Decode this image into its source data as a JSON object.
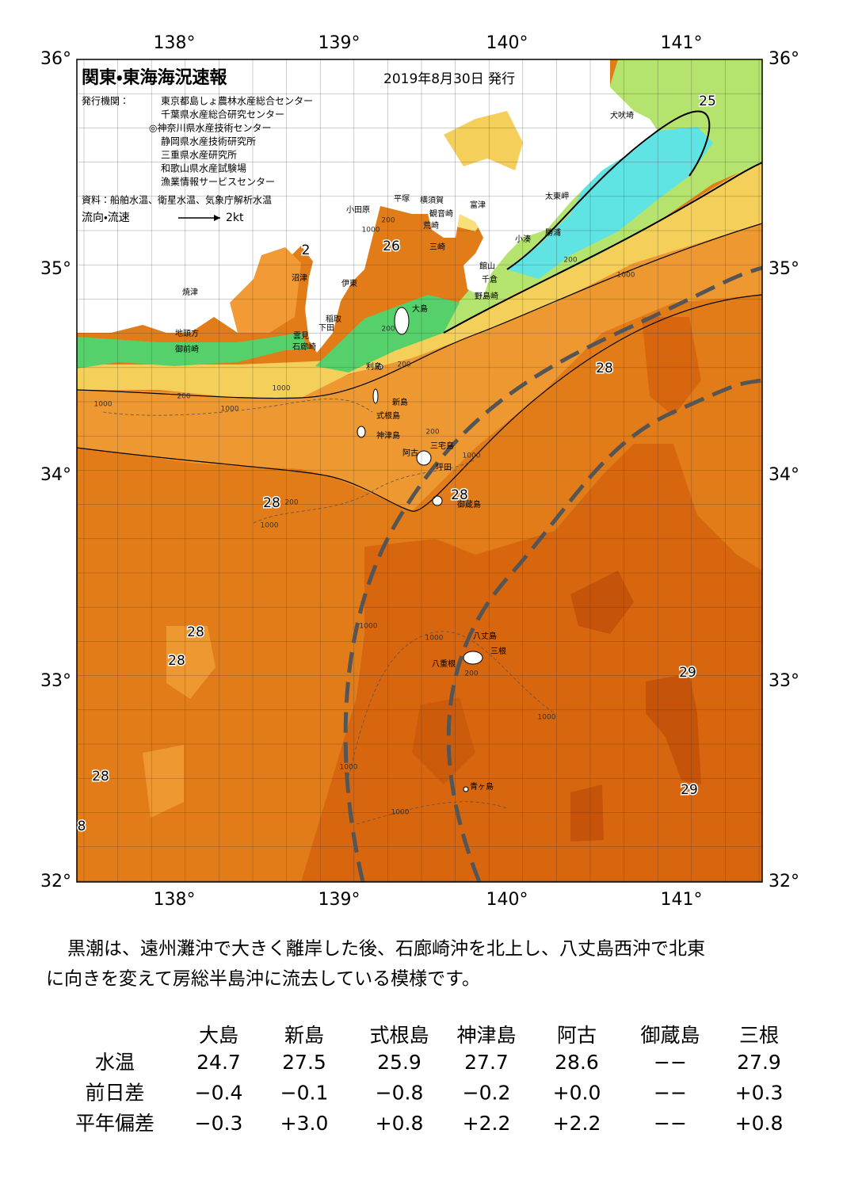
{
  "map": {
    "title": "関東・東海海況速報",
    "issued": "2019年8月30日 発行",
    "issuer_label": "発行機関：",
    "issuers": [
      "東京都島しょ農林水産総合センター",
      "千葉県水産総合研究センター",
      "◎神奈川県水産技術センター",
      "静岡県水産技術研究所",
      "三重県水産研究所",
      "和歌山県水産試験場",
      "漁業情報サービスセンター"
    ],
    "source": "資料：船舶水温、衛星水温、気象庁解析水温",
    "current_legend": {
      "label": "流向・流速",
      "speed": "2kt"
    },
    "lon_labels": [
      "138°",
      "139°",
      "140°",
      "141°"
    ],
    "lat_labels": [
      "36°",
      "35°",
      "34°",
      "33°",
      "32°"
    ],
    "place_names": [
      "犬吠埼",
      "太東岬",
      "勝浦",
      "小湊",
      "富津",
      "横須賀",
      "観音崎",
      "平塚",
      "小田原",
      "荒崎",
      "三崎",
      "館山",
      "千倉",
      "野島崎",
      "沼津",
      "伊東",
      "大島",
      "焼津",
      "稲取",
      "下田",
      "雲見",
      "石廊崎",
      "地頭方",
      "御前崎",
      "利島",
      "新島",
      "式根島",
      "神津島",
      "三宅島",
      "阿古",
      "坪田",
      "御蔵島",
      "八丈島",
      "三根",
      "八重根",
      "青ヶ島"
    ],
    "isotherm_labels": [
      "25",
      "26",
      "28",
      "28",
      "28",
      "28",
      "28",
      "29",
      "29",
      "28",
      "2",
      "8"
    ],
    "depth_labels": [
      "200",
      "200",
      "200",
      "200",
      "200",
      "200",
      "200",
      "200",
      "1000",
      "1000",
      "1000",
      "1000",
      "1000",
      "1000",
      "1000",
      "1000",
      "1000",
      "1000",
      "1000",
      "1000"
    ]
  },
  "summary": [
    "黒潮は、遠州灘沖で大きく離岸した後、石廊崎沖を北上し、八丈島西沖で北東",
    "に向きを変えて房総半島沖に流去している模様です。"
  ],
  "table": {
    "columns": [
      "大島",
      "新島",
      "式根島",
      "神津島",
      "阿古",
      "御蔵島",
      "三根"
    ],
    "rows": [
      {
        "label": "水温",
        "values": [
          "24.7",
          "27.5",
          "25.9",
          "27.7",
          "28.6",
          "−−",
          "27.9"
        ]
      },
      {
        "label": "前日差",
        "values": [
          "−0.4",
          "−0.1",
          "−0.8",
          "−0.2",
          "+0.0",
          "−−",
          "+0.3"
        ]
      },
      {
        "label": "平年偏差",
        "values": [
          "−0.3",
          "+3.0",
          "+0.8",
          "+2.2",
          "+2.2",
          "−−",
          "+0.8"
        ]
      }
    ]
  }
}
